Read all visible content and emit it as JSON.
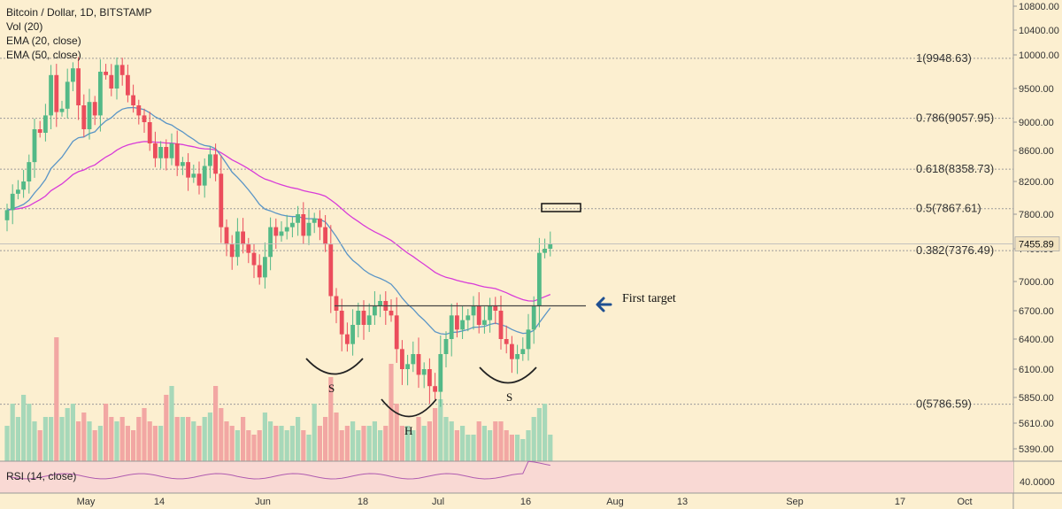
{
  "header": {
    "symbol_line": "Bitcoin / Dollar, 1D, BITSTAMP",
    "indicators": [
      "Vol (20)",
      "EMA (20, close)",
      "EMA (50, close)"
    ]
  },
  "colors": {
    "background": "#fcefd0",
    "up_candle": "#53b987",
    "down_candle": "#eb4d5c",
    "ema20": "#5a95c6",
    "ema50": "#d83bd8",
    "volume_up": "#a7d8b9",
    "volume_down": "#f2a7a3",
    "rsi_panel": "#f9d9d4",
    "rsi_line": "#b05cb0",
    "arrow": "#1f4f91"
  },
  "chart_data": {
    "type": "candlestick",
    "title": "Bitcoin / Dollar, 1D, BITSTAMP",
    "y_axis_ticks": [
      "10800.00",
      "10400.00",
      "10000.00",
      "9500.00",
      "9000.00",
      "8600.00",
      "8200.00",
      "7800.00",
      "7400.00",
      "7000.00",
      "6700.00",
      "6400.00",
      "6100.00",
      "5850.00",
      "5610.00",
      "5390.00"
    ],
    "x_axis_ticks": [
      "May",
      "14",
      "Jun",
      "18",
      "Jul",
      "16",
      "Aug",
      "13",
      "Sep",
      "17",
      "Oct"
    ],
    "last_price": "7455.89",
    "fibonacci_levels": [
      {
        "label": "1(9948.63)",
        "value": 9948.63
      },
      {
        "label": "0.786(9057.95)",
        "value": 9057.95
      },
      {
        "label": "0.618(8358.73)",
        "value": 8358.73
      },
      {
        "label": "0.5(7867.61)",
        "value": 7867.61
      },
      {
        "label": "0.382(7376.49)",
        "value": 7376.49
      },
      {
        "label": "0(5786.59)",
        "value": 5786.59
      }
    ],
    "neckline": 6750,
    "annotations": {
      "first_target": "First target",
      "shoulder_left": "S",
      "head": "H",
      "shoulder_right": "S"
    },
    "series": [
      {
        "name": "EMA (20, close)",
        "values_note": "computed from closes"
      },
      {
        "name": "EMA (50, close)",
        "values_note": "computed from closes"
      }
    ],
    "closes": [
      7850,
      8050,
      8100,
      8200,
      8450,
      8900,
      8850,
      9100,
      9700,
      9150,
      9200,
      9600,
      9800,
      9250,
      8900,
      9300,
      9100,
      9750,
      9700,
      9500,
      9850,
      9700,
      9400,
      9250,
      9100,
      9000,
      8700,
      8500,
      8650,
      8500,
      8700,
      8400,
      8450,
      8250,
      8300,
      8150,
      8400,
      8550,
      8300,
      7650,
      7450,
      7300,
      7600,
      7450,
      7350,
      7200,
      7050,
      7300,
      7650,
      7550,
      7600,
      7650,
      7700,
      7800,
      7550,
      7700,
      7750,
      7650,
      7450,
      6850,
      6700,
      6450,
      6350,
      6550,
      6700,
      6550,
      6650,
      6750,
      6800,
      6700,
      6650,
      6300,
      6100,
      6150,
      6250,
      6050,
      6100,
      5950,
      5900,
      6250,
      6400,
      6650,
      6500,
      6600,
      6650,
      6750,
      6550,
      6600,
      6750,
      6700,
      6400,
      6350,
      6200,
      6250,
      6300,
      6500,
      6750,
      7350,
      7400,
      7455.89
    ],
    "volumes": [
      800,
      1300,
      1000,
      1500,
      1300,
      900,
      700,
      1000,
      1000,
      2800,
      1000,
      1200,
      1300,
      900,
      1100,
      900,
      700,
      800,
      1300,
      1000,
      900,
      1000,
      800,
      700,
      1000,
      1200,
      900,
      800,
      800,
      1500,
      1700,
      1000,
      1000,
      1000,
      900,
      800,
      1000,
      1100,
      1700,
      1200,
      900,
      800,
      700,
      1000,
      700,
      600,
      700,
      1100,
      900,
      800,
      800,
      700,
      800,
      1000,
      700,
      600,
      1300,
      800,
      1000,
      1900,
      1100,
      700,
      800,
      900,
      700,
      800,
      800,
      900,
      700,
      800,
      2200,
      1300,
      800,
      800,
      700,
      1000,
      800,
      900,
      1200,
      1400,
      1000,
      900,
      700,
      800,
      600,
      600,
      900,
      800,
      700,
      900,
      900,
      700,
      600,
      600,
      500,
      700,
      1000,
      1200,
      1300,
      600
    ],
    "rsi_label": "RSI (14, close)",
    "rsi_tick": "40.0000"
  }
}
